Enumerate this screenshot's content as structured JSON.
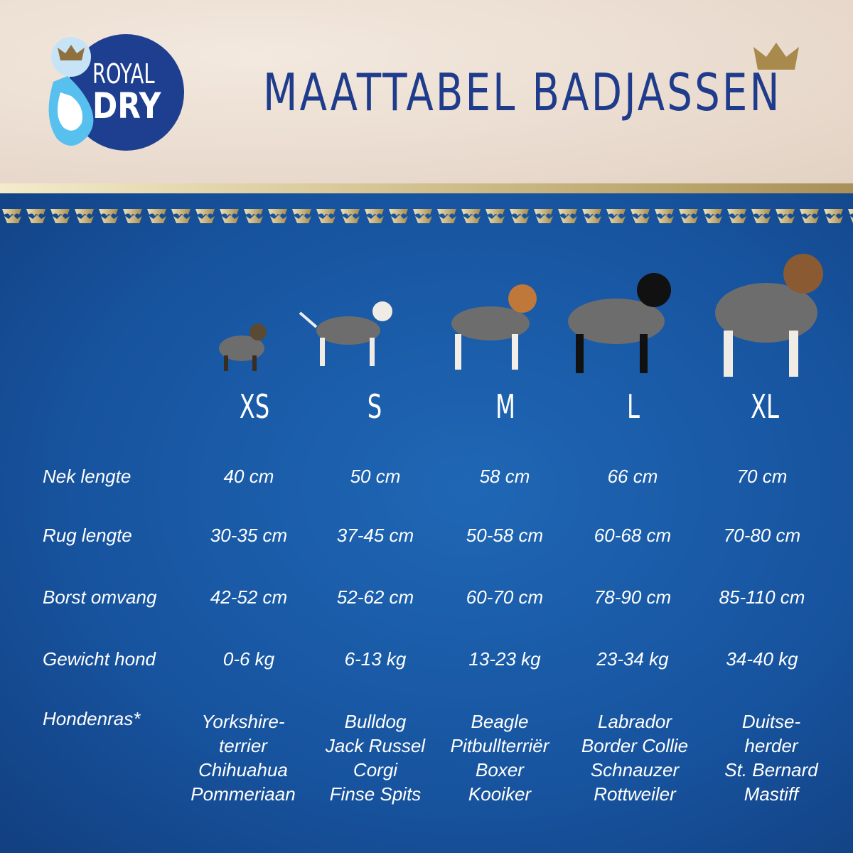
{
  "logo": {
    "line1": "ROYAL",
    "line2": "DRY"
  },
  "title": "MAATTABEL BADJASSEN",
  "sizes": [
    "XS",
    "S",
    "M",
    "L",
    "XL"
  ],
  "rows": [
    {
      "label": "Nek lengte",
      "values": [
        "40 cm",
        "50 cm",
        "58 cm",
        "66 cm",
        "70 cm"
      ]
    },
    {
      "label": "Rug lengte",
      "values": [
        "30-35 cm",
        "37-45 cm",
        "50-58 cm",
        "60-68 cm",
        "70-80 cm"
      ]
    },
    {
      "label": "Borst omvang",
      "values": [
        "42-52 cm",
        "52-62 cm",
        "60-70 cm",
        "78-90 cm",
        "85-110 cm"
      ]
    },
    {
      "label": "Gewicht hond",
      "values": [
        "0-6 kg",
        "6-13 kg",
        "13-23 kg",
        "23-34 kg",
        "34-40 kg"
      ]
    }
  ],
  "breeds": {
    "label": "Hondenras*",
    "values": [
      [
        "Yorkshire-",
        "terrier",
        "Chihuahua",
        "Pommeriaan"
      ],
      [
        "Bulldog",
        "Jack Russel",
        "Corgi",
        "Finse Spits"
      ],
      [
        "Beagle",
        "Pitbullterriër",
        "Boxer",
        "Kooiker"
      ],
      [
        "Labrador",
        "Border Collie",
        "Schnauzer",
        "Rottweiler"
      ],
      [
        "Duitse-",
        "herder",
        "St. Bernard",
        "Mastiff"
      ]
    ]
  },
  "colors": {
    "brand_blue": "#1f3c8c",
    "gold": "#a88a4c",
    "background_blue": "#1a5aa8"
  }
}
